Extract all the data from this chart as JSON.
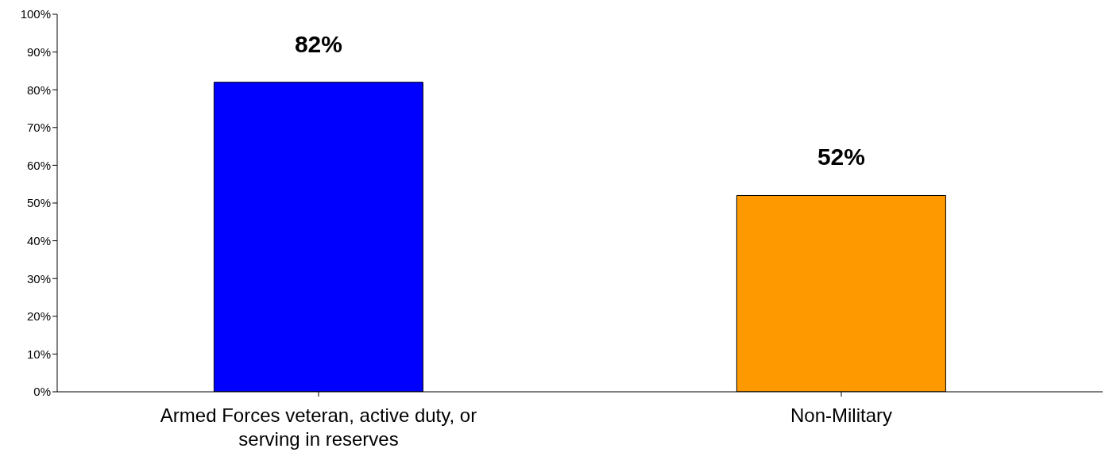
{
  "chart_data": {
    "type": "bar",
    "categories": [
      "Armed Forces veteran, active duty, or serving in reserves",
      "Non-Military"
    ],
    "values": [
      82,
      52
    ],
    "colors": [
      "#0000ff",
      "#ff9900"
    ],
    "value_labels": [
      "82%",
      "52%"
    ],
    "ylim": [
      0,
      100
    ],
    "yticks": [
      {
        "value": 0,
        "label": "0%"
      },
      {
        "value": 10,
        "label": "10%"
      },
      {
        "value": 20,
        "label": "20%"
      },
      {
        "value": 30,
        "label": "30%"
      },
      {
        "value": 40,
        "label": "40%"
      },
      {
        "value": 50,
        "label": "50%"
      },
      {
        "value": 60,
        "label": "60%"
      },
      {
        "value": 70,
        "label": "70%"
      },
      {
        "value": 80,
        "label": "80%"
      },
      {
        "value": 90,
        "label": "90%"
      },
      {
        "value": 100,
        "label": "100%"
      }
    ],
    "grid": false,
    "legend": false
  }
}
